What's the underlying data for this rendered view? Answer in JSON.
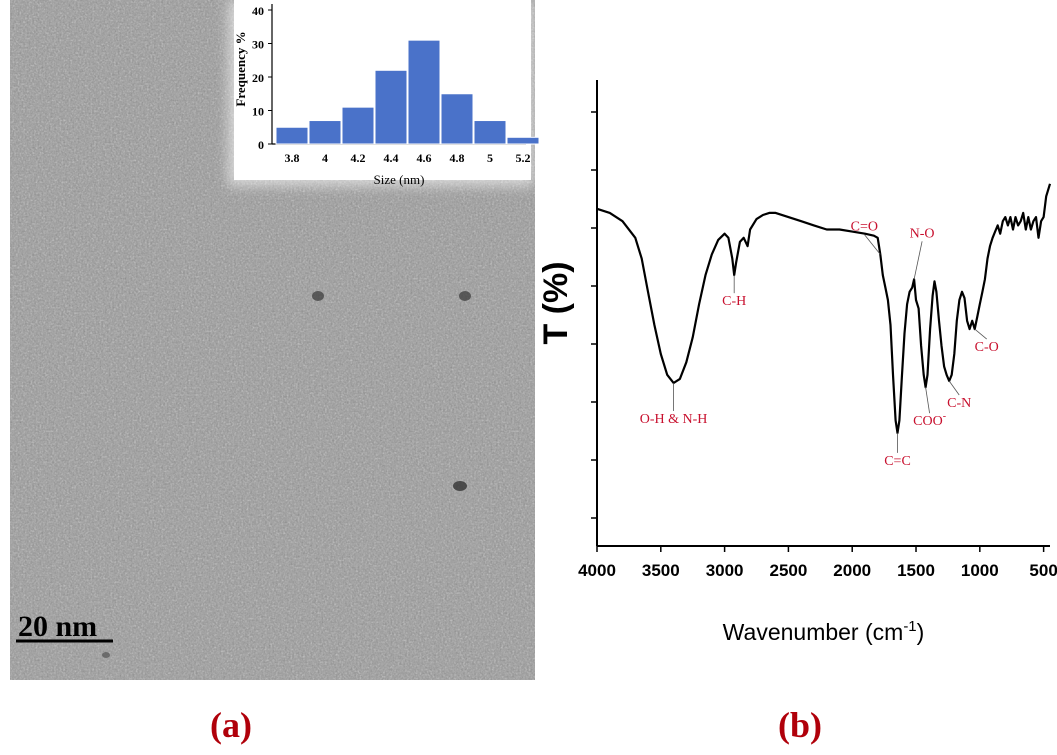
{
  "panel_a": {
    "label": "(a)",
    "scale_bar_label": "20 nm"
  },
  "panel_b": {
    "label": "(b)"
  },
  "colors": {
    "bar_fill": "#4a72c9",
    "spectrum": "#000000",
    "annotation": "#c8102e",
    "panel_label": "#b0000a"
  },
  "chart_data": [
    {
      "type": "bar",
      "ylabel": "Frequency %",
      "xlabel": "Size (nm)",
      "x_ticks": [
        "3.8",
        "4",
        "4.2",
        "4.4",
        "4.6",
        "4.8",
        "5",
        "5.2"
      ],
      "y_ticks": [
        "0",
        "10",
        "20",
        "30",
        "40"
      ],
      "ylim": [
        0,
        40
      ],
      "x": [
        3.8,
        4.0,
        4.2,
        4.4,
        4.6,
        4.8,
        5.0,
        5.2
      ],
      "values": [
        5,
        7,
        11,
        22,
        31,
        15,
        7,
        2
      ]
    },
    {
      "type": "line",
      "xlabel": "Wavenumber (cm",
      "xlabel_sup": "-1",
      "xlabel_end": ")",
      "ylabel": "T (%)",
      "xlim": [
        4000,
        450
      ],
      "ylim": [
        0,
        100
      ],
      "x_ticks": [
        "4000",
        "3500",
        "3000",
        "2500",
        "2000",
        "1500",
        "1000",
        "500"
      ],
      "points": [
        [
          4000,
          75
        ],
        [
          3900,
          74
        ],
        [
          3800,
          72
        ],
        [
          3700,
          68
        ],
        [
          3650,
          63
        ],
        [
          3600,
          55
        ],
        [
          3550,
          47
        ],
        [
          3500,
          40
        ],
        [
          3450,
          35
        ],
        [
          3400,
          33
        ],
        [
          3350,
          34
        ],
        [
          3300,
          38
        ],
        [
          3250,
          44
        ],
        [
          3200,
          52
        ],
        [
          3150,
          59
        ],
        [
          3100,
          64
        ],
        [
          3050,
          67.5
        ],
        [
          3000,
          69
        ],
        [
          2970,
          68
        ],
        [
          2940,
          63
        ],
        [
          2925,
          59
        ],
        [
          2910,
          62
        ],
        [
          2880,
          67
        ],
        [
          2850,
          68
        ],
        [
          2820,
          66
        ],
        [
          2800,
          70
        ],
        [
          2750,
          72.5
        ],
        [
          2700,
          73.5
        ],
        [
          2650,
          74
        ],
        [
          2600,
          74
        ],
        [
          2500,
          73
        ],
        [
          2400,
          72
        ],
        [
          2300,
          71
        ],
        [
          2200,
          70
        ],
        [
          2100,
          70
        ],
        [
          2000,
          69.5
        ],
        [
          1900,
          69
        ],
        [
          1830,
          68.5
        ],
        [
          1800,
          68
        ],
        [
          1780,
          64
        ],
        [
          1760,
          59
        ],
        [
          1740,
          56
        ],
        [
          1720,
          53
        ],
        [
          1700,
          47
        ],
        [
          1680,
          35
        ],
        [
          1660,
          24
        ],
        [
          1645,
          21
        ],
        [
          1630,
          24
        ],
        [
          1610,
          35
        ],
        [
          1590,
          45
        ],
        [
          1570,
          52
        ],
        [
          1550,
          55
        ],
        [
          1530,
          56
        ],
        [
          1515,
          58
        ],
        [
          1500,
          53
        ],
        [
          1480,
          51
        ],
        [
          1460,
          42
        ],
        [
          1440,
          35
        ],
        [
          1425,
          32
        ],
        [
          1410,
          35
        ],
        [
          1390,
          46
        ],
        [
          1370,
          54
        ],
        [
          1355,
          57.5
        ],
        [
          1340,
          55
        ],
        [
          1320,
          48
        ],
        [
          1300,
          42
        ],
        [
          1280,
          37
        ],
        [
          1260,
          35
        ],
        [
          1240,
          33.5
        ],
        [
          1220,
          35
        ],
        [
          1200,
          40
        ],
        [
          1180,
          48
        ],
        [
          1160,
          53
        ],
        [
          1140,
          55
        ],
        [
          1120,
          53.5
        ],
        [
          1100,
          48
        ],
        [
          1080,
          46
        ],
        [
          1060,
          48
        ],
        [
          1040,
          46
        ],
        [
          1020,
          49
        ],
        [
          1000,
          52
        ],
        [
          980,
          55
        ],
        [
          960,
          58
        ],
        [
          940,
          63
        ],
        [
          920,
          66
        ],
        [
          900,
          68
        ],
        [
          880,
          69.5
        ],
        [
          860,
          71
        ],
        [
          840,
          69
        ],
        [
          820,
          72
        ],
        [
          800,
          73
        ],
        [
          780,
          71
        ],
        [
          760,
          73
        ],
        [
          740,
          70
        ],
        [
          720,
          73
        ],
        [
          700,
          71
        ],
        [
          680,
          72
        ],
        [
          660,
          74
        ],
        [
          640,
          70
        ],
        [
          620,
          73
        ],
        [
          600,
          70
        ],
        [
          580,
          72
        ],
        [
          560,
          73
        ],
        [
          540,
          68
        ],
        [
          520,
          72
        ],
        [
          500,
          73
        ],
        [
          480,
          78
        ],
        [
          450,
          81
        ]
      ],
      "annotations": [
        {
          "label": "O-H & N-H",
          "x": 3400,
          "y": 33
        },
        {
          "label": "C-H",
          "x": 2925,
          "y": 59
        },
        {
          "label": "C=O",
          "x": 1780,
          "y": 64
        },
        {
          "label": "N-O",
          "x": 1515,
          "y": 58
        },
        {
          "label": "C=C",
          "x": 1645,
          "y": 21
        },
        {
          "label": "COO",
          "label_sup": "-",
          "x": 1425,
          "y": 32
        },
        {
          "label": "C-N",
          "x": 1240,
          "y": 33.5
        },
        {
          "label": "C-O",
          "x": 1040,
          "y": 46
        }
      ]
    }
  ]
}
